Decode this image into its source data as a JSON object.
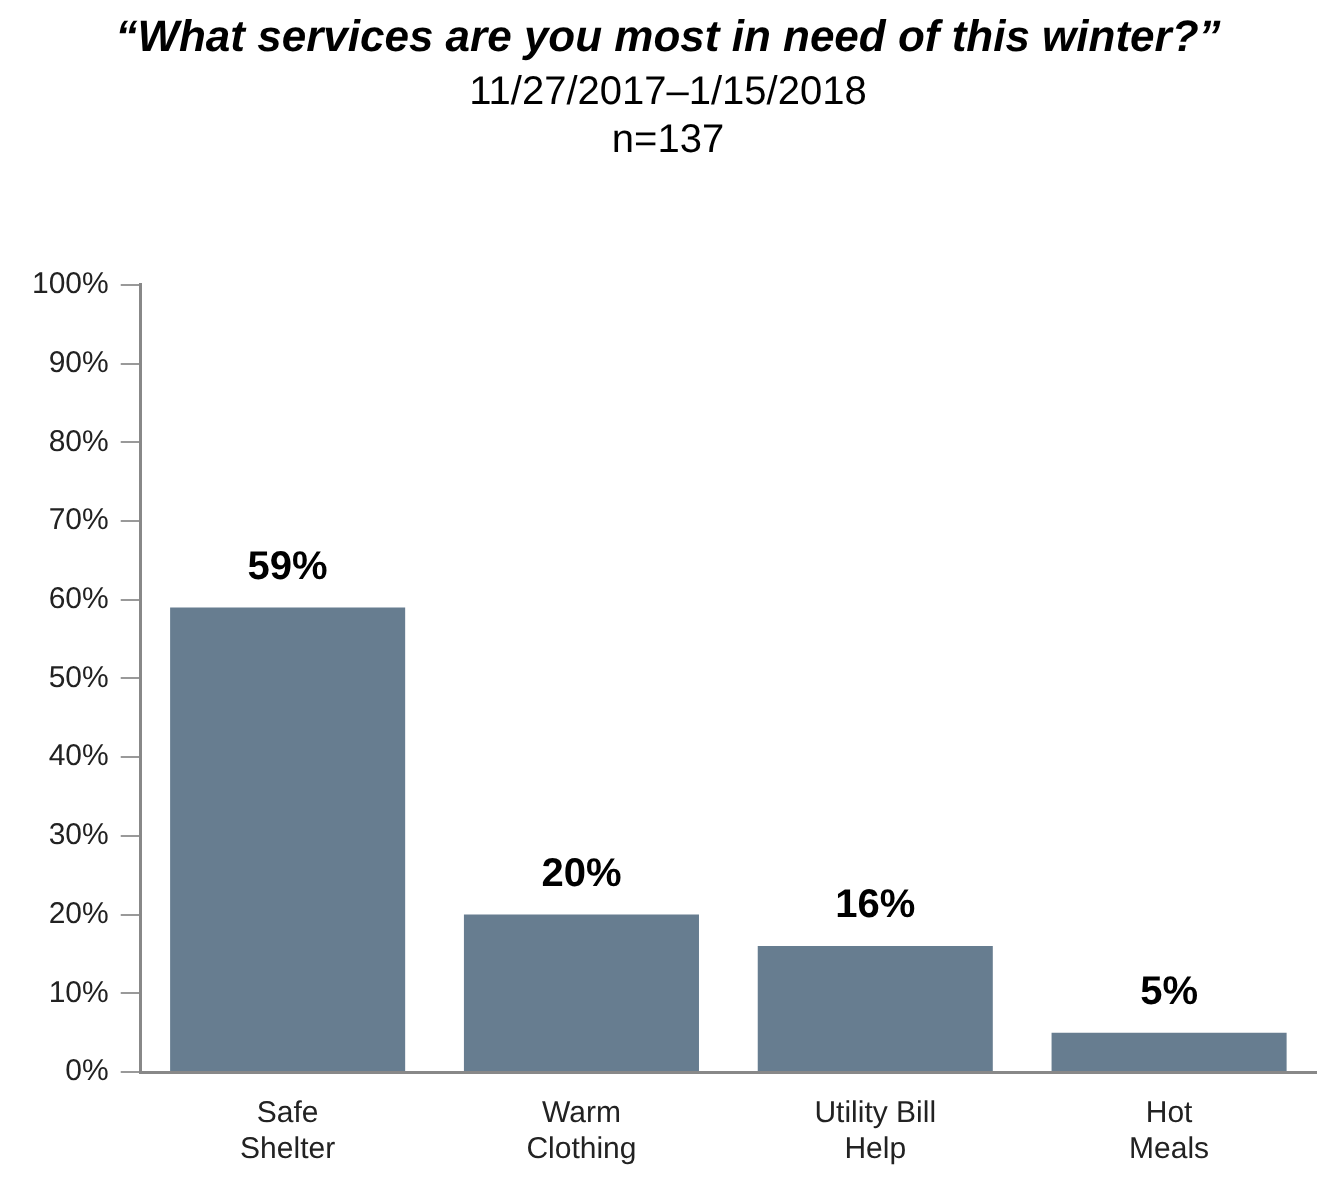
{
  "chart_data": {
    "type": "bar",
    "title": "“What services are you most in need of this winter?”",
    "subtitle": "11/27/2017–1/15/2018\nn=137",
    "categories": [
      "Safe Shelter",
      "Warm Clothing",
      "Utility Bill Help",
      "Hot Meals"
    ],
    "values": [
      59,
      20,
      16,
      5
    ],
    "color": "#677d90",
    "value_labels": [
      "59%",
      "20%",
      "16%",
      "5%"
    ],
    "ylim": [
      0,
      100
    ],
    "yticks": [
      {
        "value": 0,
        "label": "0%"
      },
      {
        "value": 10,
        "label": "10%"
      },
      {
        "value": 20,
        "label": "20%"
      },
      {
        "value": 30,
        "label": "30%"
      },
      {
        "value": 40,
        "label": "40%"
      },
      {
        "value": 50,
        "label": "50%"
      },
      {
        "value": 60,
        "label": "60%"
      },
      {
        "value": 70,
        "label": "70%"
      },
      {
        "value": 80,
        "label": "80%"
      },
      {
        "value": 90,
        "label": "90%"
      },
      {
        "value": 100,
        "label": "100%"
      }
    ],
    "grid": false,
    "legend": false
  }
}
